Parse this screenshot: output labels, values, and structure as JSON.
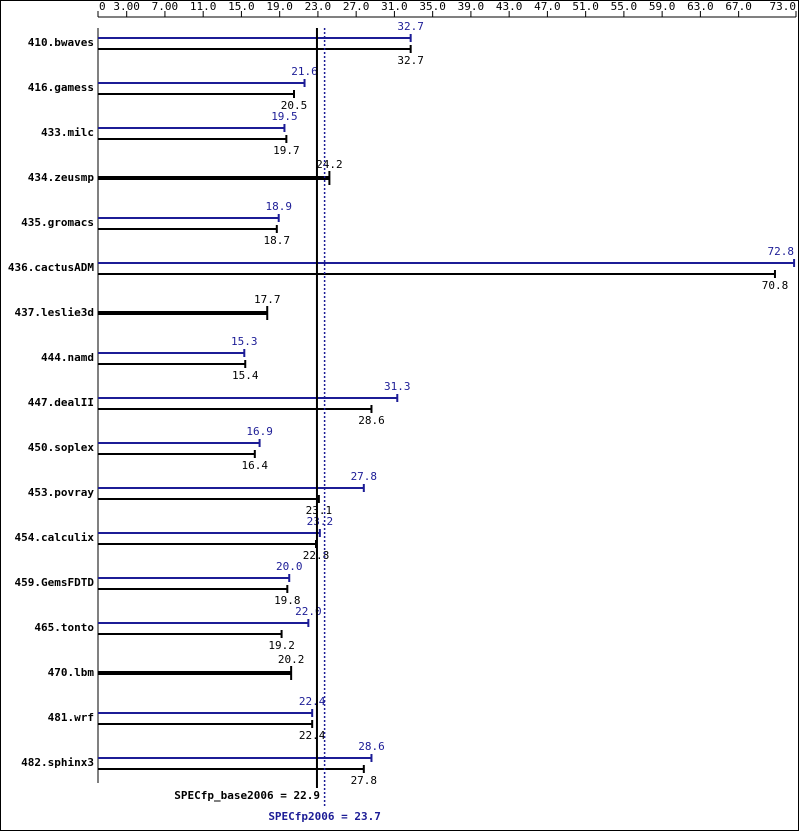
{
  "chart_data": {
    "type": "bar",
    "orientation": "horizontal",
    "categories": [
      "410.bwaves",
      "416.gamess",
      "433.milc",
      "434.zeusmp",
      "435.gromacs",
      "436.cactusADM",
      "437.leslie3d",
      "444.namd",
      "447.dealII",
      "450.soplex",
      "453.povray",
      "454.calculix",
      "459.GemsFDTD",
      "465.tonto",
      "470.lbm",
      "481.wrf",
      "482.sphinx3"
    ],
    "series": [
      {
        "color": "#1c1c96",
        "values": [
          32.7,
          21.6,
          19.5,
          null,
          18.9,
          72.8,
          null,
          15.3,
          31.3,
          16.9,
          27.8,
          23.2,
          20.0,
          22.0,
          null,
          22.4,
          28.6
        ],
        "value_labels": [
          "32.7",
          "21.6",
          "19.5",
          null,
          "18.9",
          "72.8",
          null,
          "15.3",
          "31.3",
          "16.9",
          "27.8",
          "23.2",
          "20.0",
          "22.0",
          null,
          "22.4",
          "28.6"
        ]
      },
      {
        "color": "#000000",
        "values": [
          32.7,
          20.5,
          19.7,
          24.2,
          18.7,
          70.8,
          17.7,
          15.4,
          28.6,
          16.4,
          23.1,
          22.8,
          19.8,
          19.2,
          20.2,
          22.4,
          27.8
        ]
      }
    ],
    "xlim": [
      0,
      73
    ],
    "xticks": [
      0,
      {
        "value": 3,
        "label": "3.00"
      },
      {
        "value": 7,
        "label": "7.00"
      },
      {
        "value": 11,
        "label": "11.0"
      },
      {
        "value": 15,
        "label": "15.0"
      },
      {
        "value": 19,
        "label": "19.0"
      },
      {
        "value": 23,
        "label": "23.0"
      },
      {
        "value": 27,
        "label": "27.0"
      },
      {
        "value": 31,
        "label": "31.0"
      },
      {
        "value": 35,
        "label": "35.0"
      },
      {
        "value": 39,
        "label": "39.0"
      },
      {
        "value": 43,
        "label": "43.0"
      },
      {
        "value": 47,
        "label": "47.0"
      },
      {
        "value": 51,
        "label": "51.0"
      },
      {
        "value": 55,
        "label": "55.0"
      },
      {
        "value": 59,
        "label": "59.0"
      },
      {
        "value": 63,
        "label": "63.0"
      },
      {
        "value": 67,
        "label": "67.0"
      },
      {
        "value": 73,
        "label": "73.0"
      }
    ],
    "reference_lines": [
      {
        "label": "SPECfp_base2006 = 22.9",
        "value": 22.9,
        "color": "#000000"
      },
      {
        "label": "SPECfp2006 = 23.7",
        "value": 23.7,
        "color": "#1c1c96"
      }
    ]
  }
}
